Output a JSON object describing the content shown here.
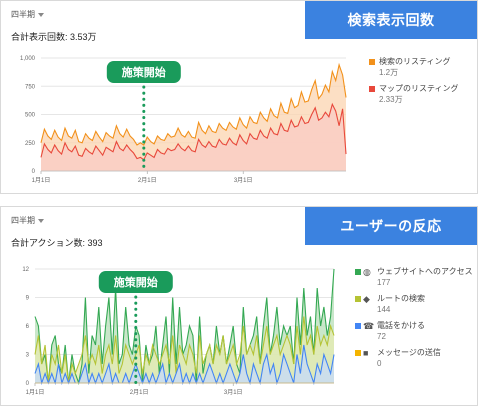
{
  "top": {
    "period": "四半期",
    "total": "合計表示回数: 3.53万",
    "tag": "検索表示回数",
    "marker_label": "施策開始",
    "legend": [
      {
        "label": "検索のリスティング",
        "value": "1.2万",
        "color": "#f2911b"
      },
      {
        "label": "マップのリスティング",
        "value": "2.33万",
        "color": "#e8483b"
      }
    ]
  },
  "bottom": {
    "period": "四半期",
    "total": "合計アクション数: 393",
    "tag": "ユーザーの反応",
    "marker_label": "施策開始",
    "legend": [
      {
        "label": "ウェブサイトへのアクセス",
        "value": "177",
        "color": "#34a853",
        "icon": "globe-icon"
      },
      {
        "label": "ルートの検索",
        "value": "144",
        "color": "#b5c334",
        "icon": "directions-icon"
      },
      {
        "label": "電話をかける",
        "value": "72",
        "color": "#4285f4",
        "icon": "phone-icon"
      },
      {
        "label": "メッセージの送信",
        "value": "0",
        "color": "#f4b400",
        "icon": "message-icon"
      }
    ]
  },
  "chart_data": [
    {
      "type": "area",
      "ylim": [
        0,
        1000
      ],
      "yticks": [
        "0",
        "250",
        "500",
        "750",
        "1,000"
      ],
      "ytick_values": [
        0,
        250,
        500,
        750,
        1000
      ],
      "xticks": [
        "1月1日",
        "2月1日",
        "3月1日"
      ],
      "xtick_days": [
        0,
        31,
        59
      ],
      "marker_day": 30,
      "days": 90,
      "series": [
        {
          "name": "検索のリスティング",
          "color": "#f2911b",
          "fill": "#fbd4b0",
          "values": [
            250,
            370,
            310,
            280,
            360,
            300,
            270,
            380,
            310,
            290,
            360,
            260,
            250,
            330,
            290,
            270,
            350,
            300,
            260,
            340,
            310,
            290,
            400,
            330,
            300,
            370,
            310,
            280,
            230,
            250,
            230,
            300,
            260,
            240,
            310,
            280,
            270,
            330,
            300,
            310,
            380,
            320,
            300,
            350,
            300,
            290,
            430,
            360,
            330,
            400,
            350,
            340,
            420,
            380,
            360,
            430,
            390,
            370,
            470,
            410,
            380,
            480,
            430,
            420,
            520,
            470,
            440,
            550,
            490,
            470,
            600,
            520,
            510,
            640,
            560,
            580,
            700,
            610,
            620,
            720,
            800,
            640,
            680,
            760,
            700,
            880,
            800,
            940,
            850,
            650
          ]
        },
        {
          "name": "マップのリスティング",
          "color": "#e8483b",
          "fill": "#f9cbc4",
          "values": [
            120,
            240,
            190,
            160,
            230,
            180,
            150,
            250,
            190,
            170,
            220,
            140,
            130,
            200,
            170,
            150,
            220,
            180,
            140,
            210,
            190,
            170,
            260,
            200,
            180,
            230,
            190,
            160,
            110,
            120,
            100,
            160,
            140,
            120,
            190,
            160,
            150,
            200,
            180,
            190,
            240,
            200,
            180,
            220,
            180,
            170,
            280,
            230,
            210,
            260,
            220,
            210,
            280,
            240,
            230,
            290,
            250,
            230,
            320,
            270,
            240,
            330,
            290,
            280,
            360,
            310,
            290,
            380,
            330,
            320,
            420,
            360,
            350,
            450,
            390,
            400,
            480,
            420,
            430,
            500,
            560,
            450,
            470,
            520,
            480,
            590,
            530,
            400,
            550,
            150
          ]
        }
      ]
    },
    {
      "type": "area",
      "ylim": [
        0,
        12
      ],
      "yticks": [
        "0",
        "3",
        "6",
        "9",
        "12"
      ],
      "ytick_values": [
        0,
        3,
        6,
        9,
        12
      ],
      "xticks": [
        "1月1日",
        "2月1日",
        "3月1日"
      ],
      "xtick_days": [
        0,
        31,
        59
      ],
      "marker_day": 30,
      "days": 90,
      "series": [
        {
          "name": "ウェブサイトへのアクセス",
          "color": "#34a853",
          "fill": "#b7dfb8",
          "values": [
            7,
            6,
            2,
            3,
            0,
            4,
            5,
            2,
            1,
            4,
            0,
            3,
            1,
            0,
            2,
            9,
            1,
            5,
            4,
            8,
            2,
            6,
            9,
            3,
            10,
            2,
            3,
            8,
            4,
            3,
            6,
            5,
            0,
            4,
            2,
            3,
            6,
            1,
            4,
            7,
            1,
            9,
            2,
            8,
            3,
            4,
            6,
            5,
            0,
            7,
            1,
            3,
            4,
            2,
            6,
            3,
            5,
            2,
            4,
            6,
            2,
            1,
            8,
            3,
            4,
            5,
            7,
            2,
            6,
            9,
            3,
            5,
            8,
            4,
            6,
            5,
            6,
            2,
            9,
            4,
            10,
            5,
            7,
            3,
            10,
            6,
            8,
            5,
            7,
            12
          ]
        },
        {
          "name": "ルートの検索",
          "color": "#b5c334",
          "fill": "#e6ebb0",
          "values": [
            3,
            5,
            2,
            4,
            0,
            3,
            2,
            4,
            1,
            3,
            0,
            2,
            1,
            2,
            3,
            5,
            2,
            3,
            2,
            4,
            1,
            3,
            4,
            2,
            5,
            1,
            2,
            4,
            3,
            2,
            3,
            4,
            1,
            3,
            2,
            4,
            3,
            2,
            3,
            4,
            2,
            5,
            1,
            4,
            3,
            2,
            4,
            3,
            1,
            5,
            2,
            3,
            4,
            2,
            4,
            3,
            5,
            2,
            3,
            4,
            2,
            3,
            6,
            3,
            4,
            3,
            5,
            2,
            4,
            6,
            3,
            4,
            5,
            3,
            4,
            5,
            4,
            2,
            6,
            3,
            7,
            4,
            5,
            3,
            6,
            4,
            5,
            4,
            6,
            5
          ]
        },
        {
          "name": "電話をかける",
          "color": "#4285f4",
          "fill": "#c6d9fb",
          "values": [
            1,
            2,
            0,
            1,
            0,
            1,
            0,
            2,
            0,
            1,
            0,
            1,
            0,
            0,
            1,
            2,
            0,
            1,
            0,
            1,
            0,
            1,
            2,
            0,
            1,
            0,
            0,
            1,
            0,
            1,
            2,
            1,
            0,
            1,
            0,
            1,
            0,
            1,
            2,
            0,
            1,
            0,
            1,
            2,
            0,
            1,
            0,
            1,
            0,
            1,
            0,
            1,
            2,
            1,
            0,
            1,
            0,
            1,
            2,
            1,
            0,
            1,
            3,
            1,
            0,
            2,
            1,
            0,
            2,
            3,
            1,
            2,
            0,
            1,
            3,
            2,
            1,
            0,
            3,
            1,
            4,
            2,
            1,
            0,
            2,
            1,
            3,
            2,
            1,
            3
          ]
        },
        {
          "name": "メッセージの送信",
          "color": "#f4b400",
          "fill": "#fbe7a6",
          "values": [
            0,
            0,
            0,
            0,
            0,
            0,
            0,
            0,
            0,
            0,
            0,
            0,
            0,
            0,
            0,
            0,
            0,
            0,
            0,
            0,
            0,
            0,
            0,
            0,
            0,
            0,
            0,
            0,
            0,
            0,
            0,
            0,
            0,
            0,
            0,
            0,
            0,
            0,
            0,
            0,
            0,
            0,
            0,
            0,
            0,
            0,
            0,
            0,
            0,
            0,
            0,
            0,
            0,
            0,
            0,
            0,
            0,
            0,
            0,
            0,
            0,
            0,
            0,
            0,
            0,
            0,
            0,
            0,
            0,
            0,
            0,
            0,
            0,
            0,
            0,
            0,
            0,
            0,
            0,
            0,
            0,
            0,
            0,
            0,
            0,
            0,
            0,
            0,
            0,
            0
          ]
        }
      ]
    }
  ]
}
